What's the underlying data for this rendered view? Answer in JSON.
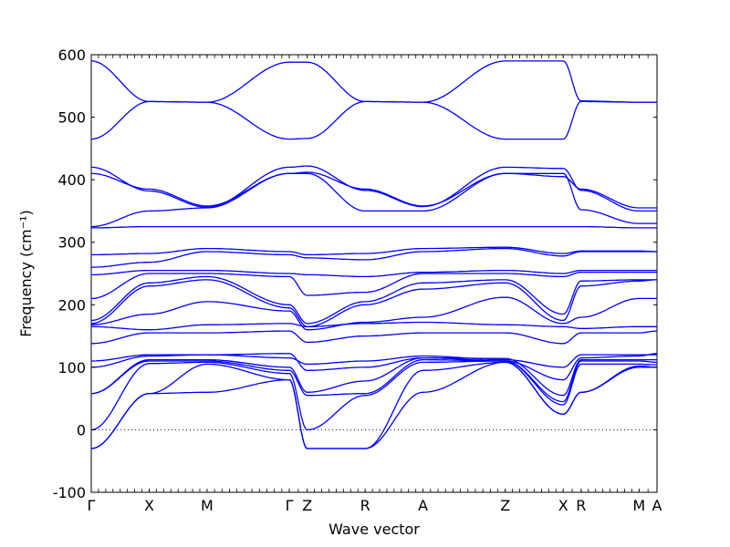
{
  "chart_data": {
    "type": "line",
    "xlabel": "Wave vector",
    "ylabel": "Frequency (cm⁻¹)",
    "ylim": [
      -100,
      600
    ],
    "yticks": [
      -100,
      0,
      100,
      200,
      300,
      400,
      500,
      600
    ],
    "high_symmetry_points": [
      {
        "label": "Γ",
        "q": 0.0
      },
      {
        "label": "X",
        "q": 1.0
      },
      {
        "label": "M",
        "q": 2.0
      },
      {
        "label": "Γ",
        "q": 3.42
      },
      {
        "label": "Z",
        "q": 3.73
      },
      {
        "label": "R",
        "q": 4.73
      },
      {
        "label": "A",
        "q": 5.73
      },
      {
        "label": "Z",
        "q": 7.15
      },
      {
        "label": "X",
        "q": 8.15
      },
      {
        "label": "R",
        "q": 8.46
      },
      {
        "label": "M",
        "q": 9.46
      },
      {
        "label": "A",
        "q": 9.77
      }
    ],
    "zero_line": 0,
    "band_color": "#0000ff",
    "grid": false,
    "series": [
      {
        "values": [
          -30,
          58,
          60,
          80,
          -30,
          -30,
          60,
          108,
          25,
          60,
          102,
          100
        ]
      },
      {
        "values": [
          -30,
          58,
          105,
          80,
          -30,
          -30,
          95,
          108,
          25,
          60,
          100,
          100
        ]
      },
      {
        "values": [
          0,
          106,
          108,
          90,
          0,
          55,
          108,
          110,
          40,
          105,
          105,
          104
        ]
      },
      {
        "values": [
          58,
          110,
          110,
          95,
          55,
          58,
          112,
          110,
          45,
          110,
          110,
          108
        ]
      },
      {
        "values": [
          58,
          112,
          112,
          100,
          60,
          78,
          115,
          114,
          55,
          112,
          112,
          112
        ]
      },
      {
        "values": [
          100,
          118,
          120,
          122,
          95,
          100,
          115,
          110,
          80,
          115,
          118,
          122
        ]
      },
      {
        "values": [
          110,
          120,
          120,
          115,
          105,
          110,
          118,
          112,
          100,
          120,
          120,
          120
        ]
      },
      {
        "values": [
          138,
          155,
          155,
          158,
          140,
          150,
          155,
          155,
          138,
          155,
          155,
          158
        ]
      },
      {
        "values": [
          165,
          160,
          168,
          170,
          165,
          170,
          172,
          168,
          165,
          162,
          165,
          165
        ]
      },
      {
        "values": [
          168,
          185,
          205,
          190,
          160,
          172,
          180,
          212,
          170,
          180,
          210,
          210
        ]
      },
      {
        "values": [
          170,
          230,
          240,
          195,
          165,
          200,
          225,
          235,
          175,
          230,
          238,
          240
        ]
      },
      {
        "values": [
          175,
          235,
          245,
          200,
          170,
          205,
          235,
          240,
          185,
          238,
          240,
          240
        ]
      },
      {
        "values": [
          210,
          250,
          250,
          245,
          215,
          220,
          250,
          250,
          245,
          252,
          252,
          252
        ]
      },
      {
        "values": [
          248,
          255,
          255,
          250,
          248,
          245,
          252,
          255,
          250,
          255,
          255,
          255
        ]
      },
      {
        "values": [
          260,
          268,
          285,
          280,
          275,
          272,
          285,
          290,
          278,
          285,
          285,
          285
        ]
      },
      {
        "values": [
          280,
          282,
          290,
          285,
          280,
          282,
          290,
          292,
          282,
          286,
          286,
          285
        ]
      },
      {
        "values": [
          323,
          325,
          325,
          325,
          325,
          325,
          325,
          325,
          325,
          325,
          323,
          323
        ]
      },
      {
        "values": [
          325,
          350,
          355,
          410,
          410,
          350,
          350,
          410,
          410,
          352,
          330,
          330
        ]
      },
      {
        "values": [
          410,
          385,
          358,
          410,
          412,
          385,
          358,
          410,
          405,
          385,
          355,
          355
        ]
      },
      {
        "values": [
          420,
          382,
          356,
          420,
          422,
          383,
          357,
          420,
          418,
          383,
          350,
          350
        ]
      },
      {
        "values": [
          465,
          525,
          524,
          465,
          466,
          525,
          524,
          465,
          465,
          525,
          524,
          524
        ]
      },
      {
        "values": [
          590,
          525,
          524,
          588,
          588,
          525,
          524,
          590,
          590,
          526,
          524,
          524
        ]
      }
    ]
  }
}
